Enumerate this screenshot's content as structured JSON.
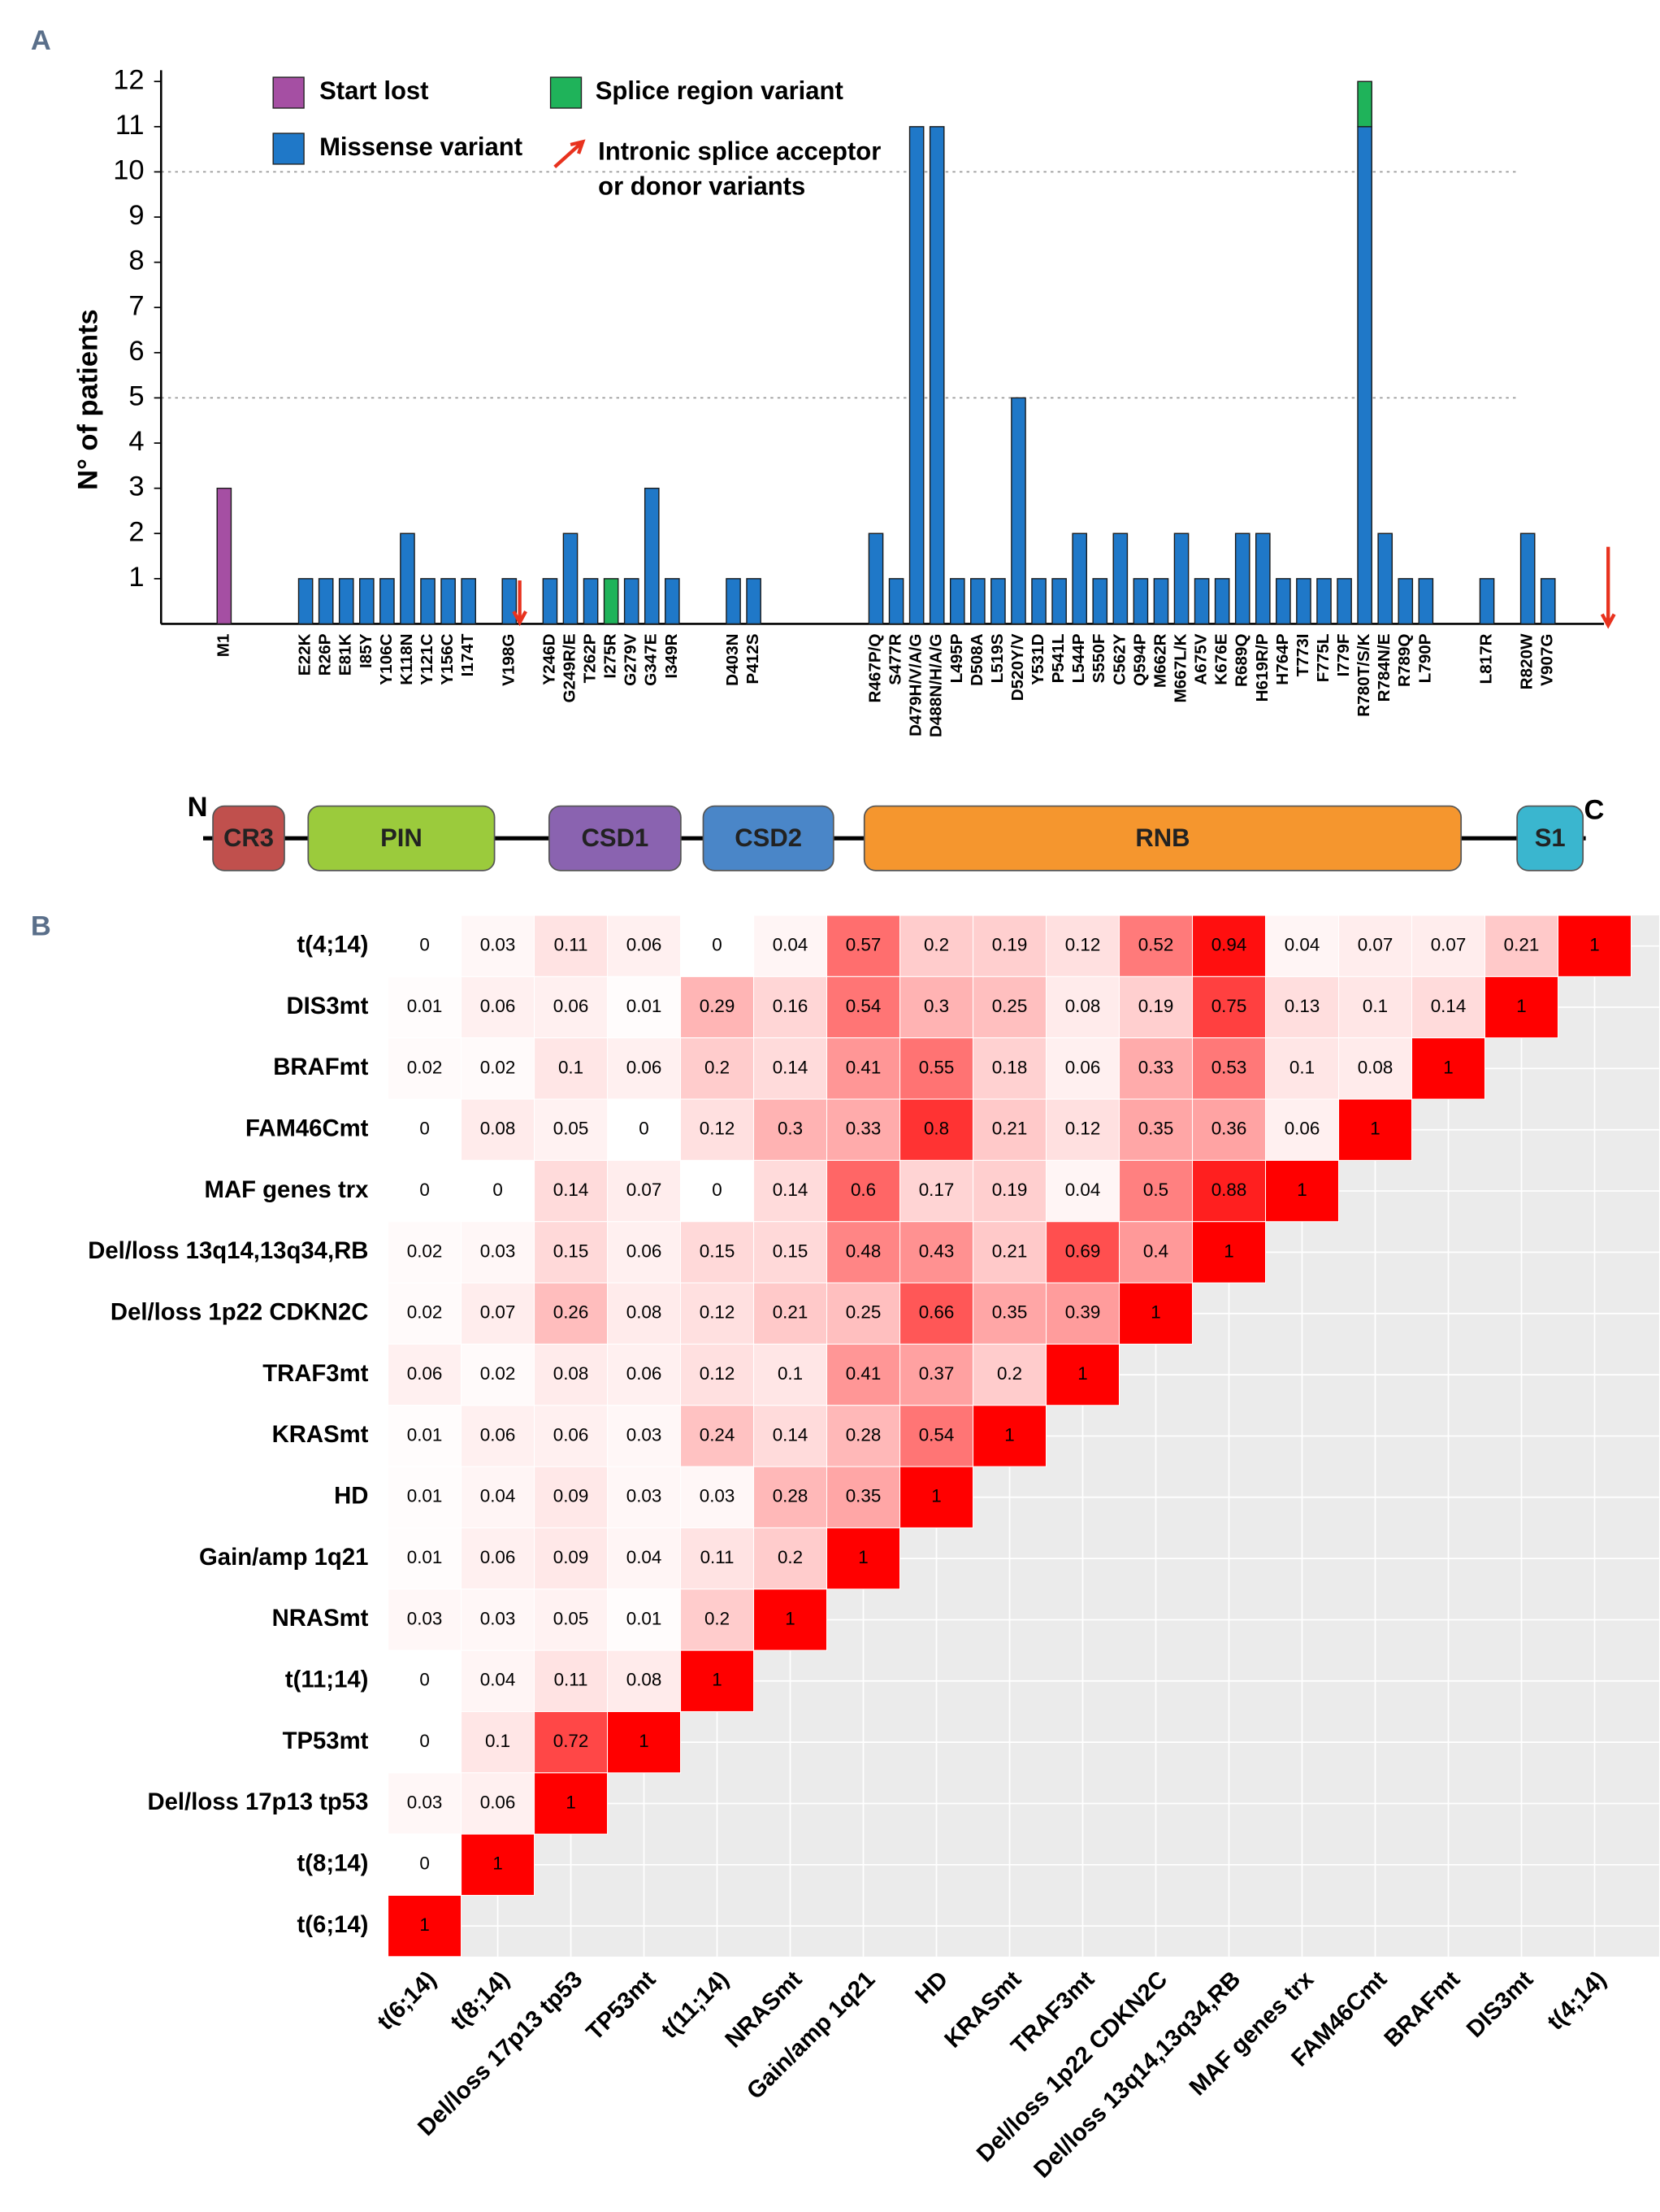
{
  "panels": {
    "a": "A",
    "b": "B"
  },
  "chart_data": [
    {
      "type": "stacked_bar",
      "ylabel": "N° of patients",
      "categories": [
        "M1",
        null,
        null,
        null,
        "E22K",
        "R26P",
        "E81K",
        "I85Y",
        "Y106C",
        "K118N",
        "Y121C",
        "Y156C",
        "I174T",
        null,
        "V198G",
        null,
        "Y246D",
        "G249R/E",
        "T262P",
        "I275R",
        "G279V",
        "G347E",
        "I349R",
        null,
        null,
        "D403N",
        "P412S",
        null,
        null,
        null,
        null,
        null,
        "R467P/Q",
        "S477R",
        "D479H/V/A/G",
        "D488N/H/A/G",
        "L495P",
        "D508A",
        "L519S",
        "D520Y/V",
        "Y531D",
        "P541L",
        "L544P",
        "S550F",
        "C562Y",
        "Q594P",
        "M662R",
        "M667L/K",
        "A675V",
        "K676E",
        "R689Q",
        "H619R/P",
        "H764P",
        "T773I",
        "F775L",
        "I779F",
        "R780T/S/K",
        "R784N/E",
        "R789Q",
        "L790P",
        null,
        null,
        "L817R",
        null,
        "R820W",
        "V907G",
        null,
        null
      ],
      "series": [
        {
          "name": "Start lost",
          "color": "#a54fa3",
          "values": [
            3,
            null,
            null,
            null,
            null,
            null,
            null,
            null,
            null,
            null,
            null,
            null,
            null,
            null,
            null,
            null,
            null,
            null,
            null,
            null,
            null,
            null,
            null,
            null,
            null,
            null,
            null,
            null,
            null,
            null,
            null,
            null,
            null,
            null,
            null,
            null,
            null,
            null,
            null,
            null,
            null,
            null,
            null,
            null,
            null,
            null,
            null,
            null,
            null,
            null,
            null,
            null,
            null,
            null,
            null,
            null,
            null,
            null,
            null,
            null,
            null,
            null,
            null,
            null,
            null,
            null,
            null,
            null
          ]
        },
        {
          "name": "Missense variant",
          "color": "#1f78c8",
          "values": [
            null,
            null,
            null,
            null,
            1,
            1,
            1,
            1,
            1,
            2,
            1,
            1,
            1,
            null,
            1,
            null,
            1,
            2,
            1,
            null,
            1,
            3,
            1,
            null,
            null,
            1,
            1,
            null,
            null,
            null,
            null,
            null,
            2,
            1,
            11,
            11,
            1,
            1,
            1,
            5,
            1,
            1,
            2,
            1,
            2,
            1,
            1,
            2,
            1,
            1,
            2,
            2,
            1,
            1,
            1,
            1,
            11,
            2,
            1,
            1,
            null,
            null,
            1,
            null,
            2,
            1,
            null,
            null
          ]
        },
        {
          "name": "Splice region variant",
          "color": "#1fb35a",
          "values": [
            null,
            null,
            null,
            null,
            null,
            null,
            null,
            null,
            null,
            null,
            null,
            null,
            null,
            null,
            null,
            null,
            null,
            null,
            null,
            1,
            null,
            null,
            null,
            null,
            null,
            null,
            null,
            null,
            null,
            null,
            null,
            null,
            null,
            null,
            null,
            null,
            null,
            null,
            null,
            null,
            null,
            null,
            null,
            null,
            null,
            null,
            null,
            null,
            null,
            null,
            null,
            null,
            null,
            null,
            null,
            null,
            1,
            null,
            null,
            null,
            null,
            null,
            null,
            null,
            null,
            null,
            null,
            null
          ]
        }
      ],
      "arrow_legend": [
        "Intronic splice acceptor",
        "or donor variants"
      ],
      "ylim": [
        0,
        12
      ],
      "yticks": [
        1,
        2,
        3,
        4,
        5,
        6,
        7,
        8,
        9,
        10,
        11,
        12
      ],
      "gridlines": [
        5,
        10
      ],
      "protein": {
        "n_label": "N",
        "c_label": "C",
        "domains": [
          {
            "name": "CR3",
            "color": "#c0504d"
          },
          {
            "name": "PIN",
            "color": "#9bcb3c"
          },
          {
            "name": "CSD1",
            "color": "#8a63b0"
          },
          {
            "name": "CSD2",
            "color": "#4a86c8"
          },
          {
            "name": "RNB",
            "color": "#f5962e"
          },
          {
            "name": "S1",
            "color": "#3ab6cf"
          }
        ]
      }
    },
    {
      "type": "heatmap",
      "x_categories": [
        "t(6;14)",
        "t(8;14)",
        "Del/loss 17p13 tp53",
        "TP53mt",
        "t(11;14)",
        "NRASmt",
        "Gain/amp 1q21",
        "HD",
        "KRASmt",
        "TRAF3mt",
        "Del/loss 1p22 CDKN2C",
        "Del/loss 13q14,13q34,RB",
        "MAF genes trx",
        "FAM46Cmt",
        "BRAFmt",
        "DIS3mt",
        "t(4;14)"
      ],
      "y_categories": [
        "t(4;14)",
        "DIS3mt",
        "BRAFmt",
        "FAM46Cmt",
        "MAF genes trx",
        "Del/loss 13q14,13q34,RB",
        "Del/loss 1p22 CDKN2C",
        "TRAF3mt",
        "KRASmt",
        "HD",
        "Gain/amp 1q21",
        "NRASmt",
        "t(11;14)",
        "TP53mt",
        "Del/loss 17p13 tp53",
        "t(8;14)",
        "t(6;14)"
      ],
      "values": [
        [
          0,
          0.03,
          0.11,
          0.06,
          0,
          0.04,
          0.57,
          0.2,
          0.19,
          0.12,
          0.52,
          0.94,
          0.04,
          0.07,
          0.07,
          0.21,
          1
        ],
        [
          0.01,
          0.06,
          0.06,
          0.01,
          0.29,
          0.16,
          0.54,
          0.3,
          0.25,
          0.08,
          0.19,
          0.75,
          0.13,
          0.1,
          0.14,
          1
        ],
        [
          0.02,
          0.02,
          0.1,
          0.06,
          0.2,
          0.14,
          0.41,
          0.55,
          0.18,
          0.06,
          0.33,
          0.53,
          0.1,
          0.08,
          1
        ],
        [
          0,
          0.08,
          0.05,
          0,
          0.12,
          0.3,
          0.33,
          0.8,
          0.21,
          0.12,
          0.35,
          0.36,
          0.06,
          1
        ],
        [
          0,
          0,
          0.14,
          0.07,
          0,
          0.14,
          0.6,
          0.17,
          0.19,
          0.04,
          0.5,
          0.88,
          1
        ],
        [
          0.02,
          0.03,
          0.15,
          0.06,
          0.15,
          0.15,
          0.48,
          0.43,
          0.21,
          0.69,
          0.4,
          1
        ],
        [
          0.02,
          0.07,
          0.26,
          0.08,
          0.12,
          0.21,
          0.25,
          0.66,
          0.35,
          0.39,
          1
        ],
        [
          0.06,
          0.02,
          0.08,
          0.06,
          0.12,
          0.1,
          0.41,
          0.37,
          0.2,
          1
        ],
        [
          0.01,
          0.06,
          0.06,
          0.03,
          0.24,
          0.14,
          0.28,
          0.54,
          1
        ],
        [
          0.01,
          0.04,
          0.09,
          0.03,
          0.03,
          0.28,
          0.35,
          1
        ],
        [
          0.01,
          0.06,
          0.09,
          0.04,
          0.11,
          0.2,
          1
        ],
        [
          0.03,
          0.03,
          0.05,
          0.01,
          0.2,
          1
        ],
        [
          0,
          0.04,
          0.11,
          0.08,
          1
        ],
        [
          0,
          0.1,
          0.72,
          1
        ],
        [
          0.03,
          0.06,
          1
        ],
        [
          0,
          1
        ],
        [
          1
        ]
      ],
      "low_color": "#ffffff",
      "high_color": "#ff0000"
    }
  ]
}
